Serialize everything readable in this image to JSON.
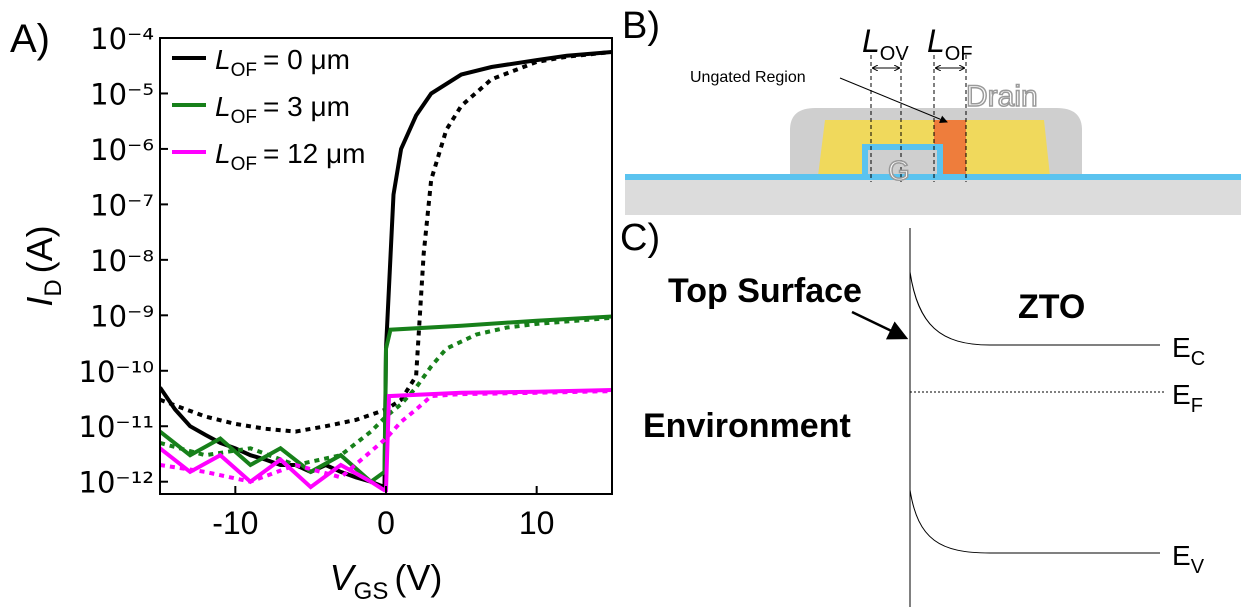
{
  "chart_data": {
    "type": "line",
    "panel_label": "A)",
    "xlabel": [
      "V",
      "GS",
      "(V)"
    ],
    "ylabel": [
      "I",
      "D",
      "(A)"
    ],
    "xlim": [
      -15,
      15
    ],
    "xticks": [
      -10,
      0,
      10
    ],
    "ylim": [
      6e-13,
      0.0001
    ],
    "log_y": true,
    "yticks": [
      {
        "value": 0.0001,
        "label": "10⁻⁴"
      },
      {
        "value": 1e-05,
        "label": "10⁻⁵"
      },
      {
        "value": 1e-06,
        "label": "10⁻⁶"
      },
      {
        "value": 1e-07,
        "label": "10⁻⁷"
      },
      {
        "value": 1e-08,
        "label": "10⁻⁸"
      },
      {
        "value": 1e-09,
        "label": "10⁻⁹"
      },
      {
        "value": 1e-10,
        "label": "10⁻¹⁰"
      },
      {
        "value": 1e-11,
        "label": "10⁻¹¹"
      },
      {
        "value": 1e-12,
        "label": "10⁻¹²"
      }
    ],
    "legend_position": "upper left",
    "series": [
      {
        "name": [
          "L",
          "OF",
          "= 0 μm"
        ],
        "color": "#000000",
        "style": "solid",
        "x": [
          -15,
          -14,
          -13,
          -12,
          -11,
          -10,
          -9,
          -8,
          -7,
          -6,
          -5,
          -4,
          -3,
          -2,
          -1,
          -0.1,
          0,
          0.5,
          1,
          2,
          3,
          5,
          7,
          10,
          12,
          15
        ],
        "values": [
          5e-11,
          2e-11,
          1e-11,
          7e-12,
          5e-12,
          4e-12,
          3e-12,
          2.5e-12,
          2e-12,
          2e-12,
          1.5e-12,
          2e-12,
          1.5e-12,
          1.2e-12,
          1e-12,
          8e-13,
          2.5e-10,
          1.5e-07,
          1e-06,
          4e-06,
          1e-05,
          2.2e-05,
          3e-05,
          4e-05,
          4.8e-05,
          5.6e-05
        ]
      },
      {
        "color": "#000000",
        "style": "dotted",
        "x": [
          -15,
          -12,
          -10,
          -8,
          -6,
          -4,
          -2,
          0,
          1,
          2,
          2.5,
          3,
          4,
          5,
          7,
          10,
          12,
          15
        ],
        "values": [
          3e-11,
          1.5e-11,
          1.1e-11,
          9e-12,
          8e-12,
          1e-11,
          1.3e-11,
          2e-11,
          3e-11,
          8e-11,
          1.3e-08,
          2.8e-07,
          2.2e-06,
          6e-06,
          1.8e-05,
          3.7e-05,
          4.6e-05,
          5.6e-05
        ]
      },
      {
        "name": [
          "L",
          "OF",
          "= 3 μm"
        ],
        "color": "#17801a",
        "style": "solid",
        "x": [
          -15,
          -13,
          -11,
          -9,
          -7,
          -5,
          -3,
          -1,
          -0.1,
          0,
          0.3,
          5,
          10,
          15
        ],
        "values": [
          8e-12,
          3e-12,
          6e-12,
          2e-12,
          4e-12,
          1.5e-12,
          3e-12,
          1e-12,
          1.5e-12,
          2.5e-10,
          5.5e-10,
          6.5e-10,
          8e-10,
          9.5e-10
        ]
      },
      {
        "color": "#17801a",
        "style": "dotted",
        "x": [
          -15,
          -12,
          -9,
          -6,
          -3,
          -1,
          0,
          1,
          2,
          3,
          4,
          6,
          8,
          10,
          15
        ],
        "values": [
          5e-12,
          3e-12,
          4e-12,
          2e-12,
          3e-12,
          8e-12,
          1.5e-11,
          2.5e-11,
          5e-11,
          1.2e-10,
          2.5e-10,
          4.5e-10,
          6e-10,
          7e-10,
          9e-10
        ]
      },
      {
        "name": [
          "L",
          "OF",
          "= 12 μm"
        ],
        "color": "#ff00ff",
        "style": "solid",
        "x": [
          -15,
          -13,
          -11,
          -9,
          -7,
          -5,
          -3,
          -1,
          -0.1,
          0,
          0.2,
          5,
          10,
          15
        ],
        "values": [
          4e-12,
          1.5e-12,
          3e-12,
          1e-12,
          2.5e-12,
          8e-13,
          2e-12,
          1e-12,
          7e-13,
          7e-13,
          3.5e-11,
          4e-11,
          4.2e-11,
          4.5e-11
        ]
      },
      {
        "color": "#ff00ff",
        "style": "dotted",
        "x": [
          -15,
          -12,
          -9,
          -6,
          -3,
          0,
          1,
          2,
          3,
          5,
          10,
          15
        ],
        "values": [
          2e-12,
          1.5e-12,
          1e-12,
          2e-12,
          1.2e-12,
          6e-12,
          1.2e-11,
          2e-11,
          3.5e-11,
          3.8e-11,
          4e-11,
          4.3e-11
        ]
      }
    ]
  },
  "diagram_b": {
    "panel_label": "B)",
    "overlap_label": [
      "L",
      "OV"
    ],
    "offset_label": [
      "L",
      "OF"
    ],
    "ungated": "Ungated Region",
    "drain": "Drain",
    "gate": "G"
  },
  "diagram_c": {
    "panel_label": "C)",
    "surface": "Top Surface",
    "material": "ZTO",
    "environment": "Environment",
    "levels": [
      [
        "E",
        "C"
      ],
      [
        "E",
        "F"
      ],
      [
        "E",
        "V"
      ]
    ]
  }
}
